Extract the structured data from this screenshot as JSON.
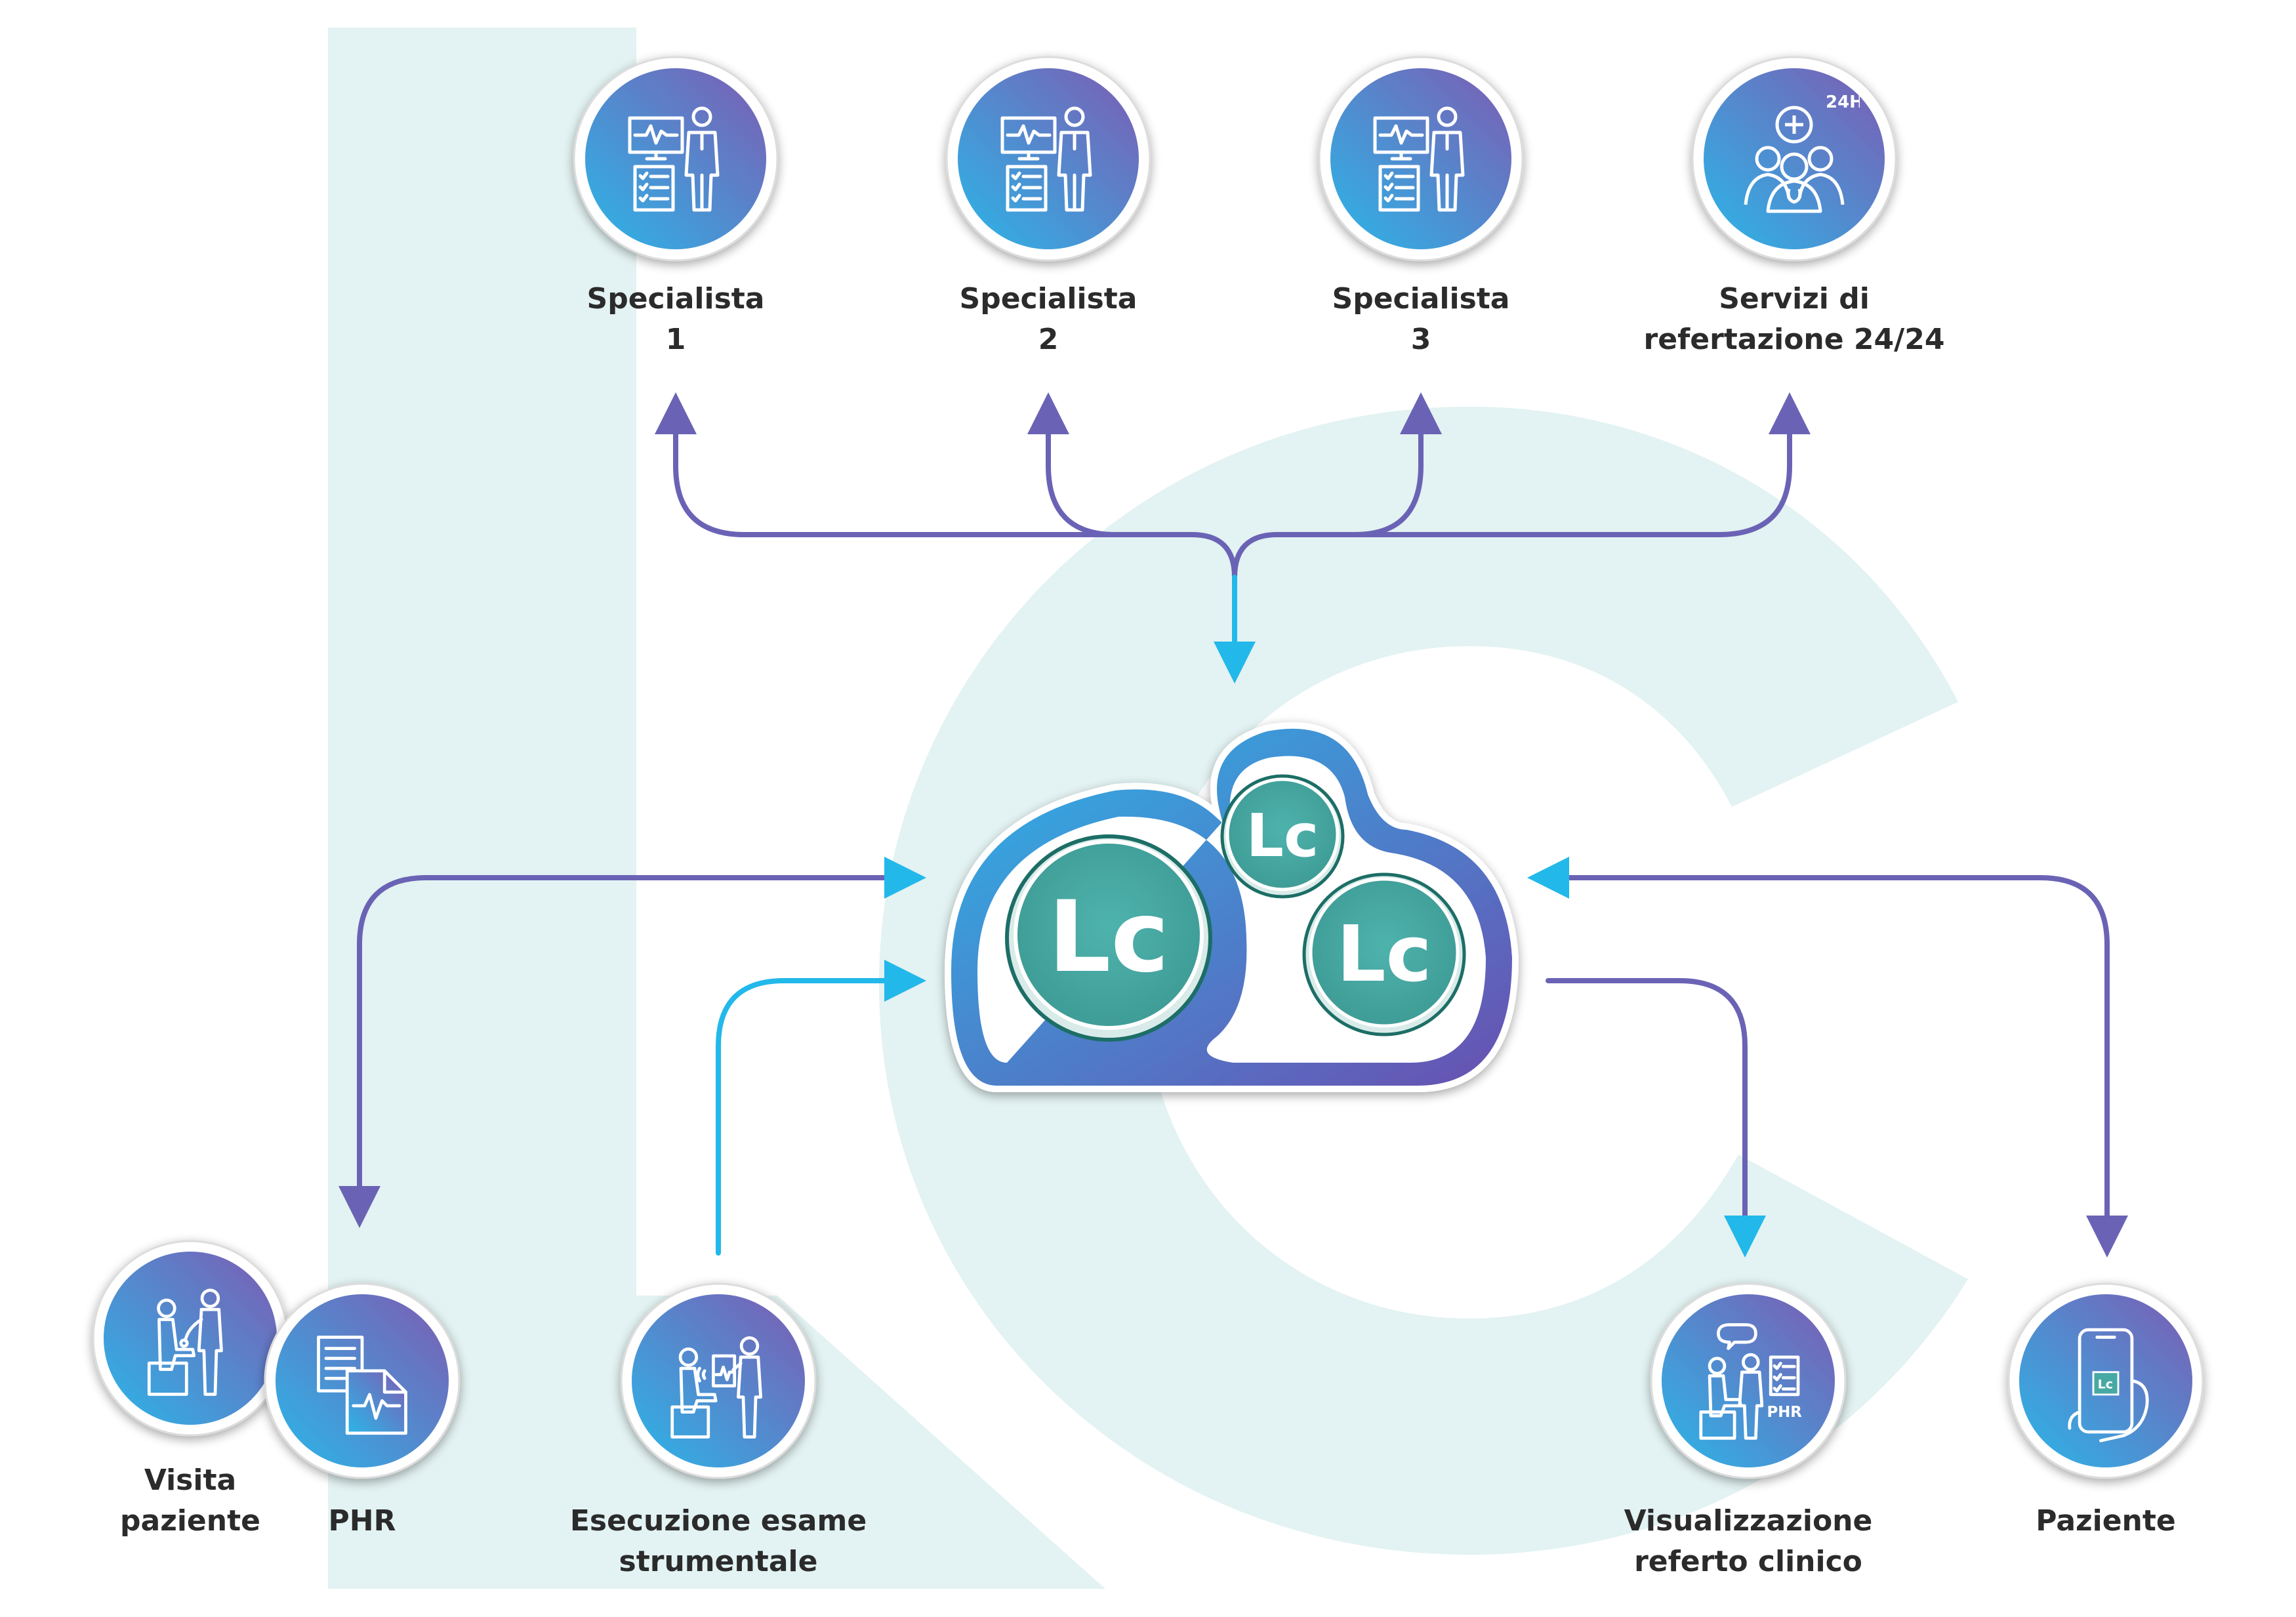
{
  "colors": {
    "background_letters": "#e3f2f2",
    "arrow_purple": "#6a63b5",
    "arrow_cyan": "#22b8ea",
    "circle_gradient_start": "#2bb6e8",
    "circle_gradient_end": "#7d5cb3",
    "lc_teal": "#47a9a4",
    "lc_dark": "#1d6e66"
  },
  "cloud": {
    "logos": [
      "Lc",
      "Lc",
      "Lc"
    ]
  },
  "specialists": [
    {
      "line1": "Specialista",
      "line2": "1",
      "icon": "doctor-monitor-icon"
    },
    {
      "line1": "Specialista",
      "line2": "2",
      "icon": "doctor-monitor-icon"
    },
    {
      "line1": "Specialista",
      "line2": "3",
      "icon": "doctor-monitor-icon"
    },
    {
      "line1": "Servizi di",
      "line2": "refertazione 24/24",
      "icon": "team-24h-icon",
      "badge": "24H"
    }
  ],
  "bottom_nodes": [
    {
      "line1": "Visita",
      "line2": "paziente",
      "icon": "doctor-patient-icon"
    },
    {
      "line1": "PHR",
      "line2": "",
      "icon": "documents-ecg-icon"
    },
    {
      "line1": "Esecuzione esame",
      "line2": "strumentale",
      "icon": "instrumental-exam-icon"
    },
    {
      "line1": "Visualizzazione",
      "line2": "referto clinico",
      "icon": "clinical-report-icon",
      "badge": "PHR"
    },
    {
      "line1": "Paziente",
      "line2": "",
      "icon": "smartphone-app-icon",
      "badge": "Lc"
    }
  ]
}
